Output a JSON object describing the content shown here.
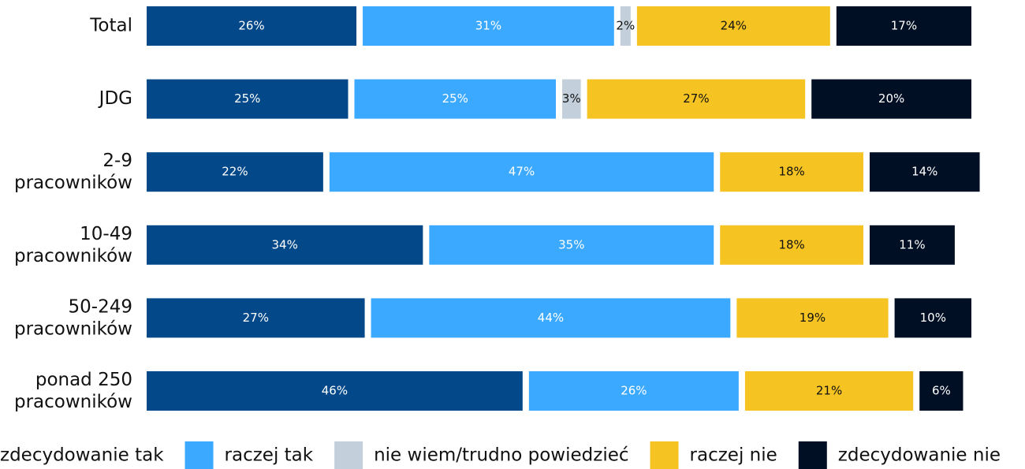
{
  "chart_data": {
    "type": "stacked-bar-horizontal",
    "categories": [
      "Total",
      "JDG",
      "2-9 pracowników",
      "10-49 pracowników",
      "50-249 pracowników",
      "ponad 250 pracowników"
    ],
    "xlim": [
      0,
      100
    ],
    "series": [
      {
        "name": "zdecydowanie tak",
        "color": "#03498a",
        "label_color": "#ffffff",
        "values": [
          26,
          25,
          22,
          34,
          27,
          46
        ],
        "value_labels": [
          "26%",
          "25%",
          "22%",
          "34%",
          "27%",
          "46%"
        ]
      },
      {
        "name": "raczej tak",
        "color": "#3ba9ff",
        "label_color": "#ffffff",
        "values": [
          31,
          25,
          47,
          35,
          44,
          26
        ],
        "value_labels": [
          "31%",
          "25%",
          "47%",
          "35%",
          "44%",
          "26%"
        ]
      },
      {
        "name": "nie wiem/trudno powiedzieć",
        "color": "#c3d0db",
        "label_color": "#111111",
        "values": [
          2,
          3,
          null,
          null,
          null,
          null
        ],
        "value_labels": [
          "2%",
          "3%",
          null,
          null,
          null,
          null
        ]
      },
      {
        "name": "raczej nie",
        "color": "#f5c322",
        "label_color": "#111111",
        "values": [
          24,
          27,
          18,
          18,
          19,
          21
        ],
        "value_labels": [
          "24%",
          "27%",
          "18%",
          "18%",
          "19%",
          "21%"
        ]
      },
      {
        "name": "zdecydowanie nie",
        "color": "#000f24",
        "label_color": "#ffffff",
        "values": [
          17,
          20,
          14,
          11,
          10,
          6
        ],
        "value_labels": [
          "17%",
          "20%",
          "14%",
          "11%",
          "10%",
          "6%"
        ]
      }
    ]
  }
}
